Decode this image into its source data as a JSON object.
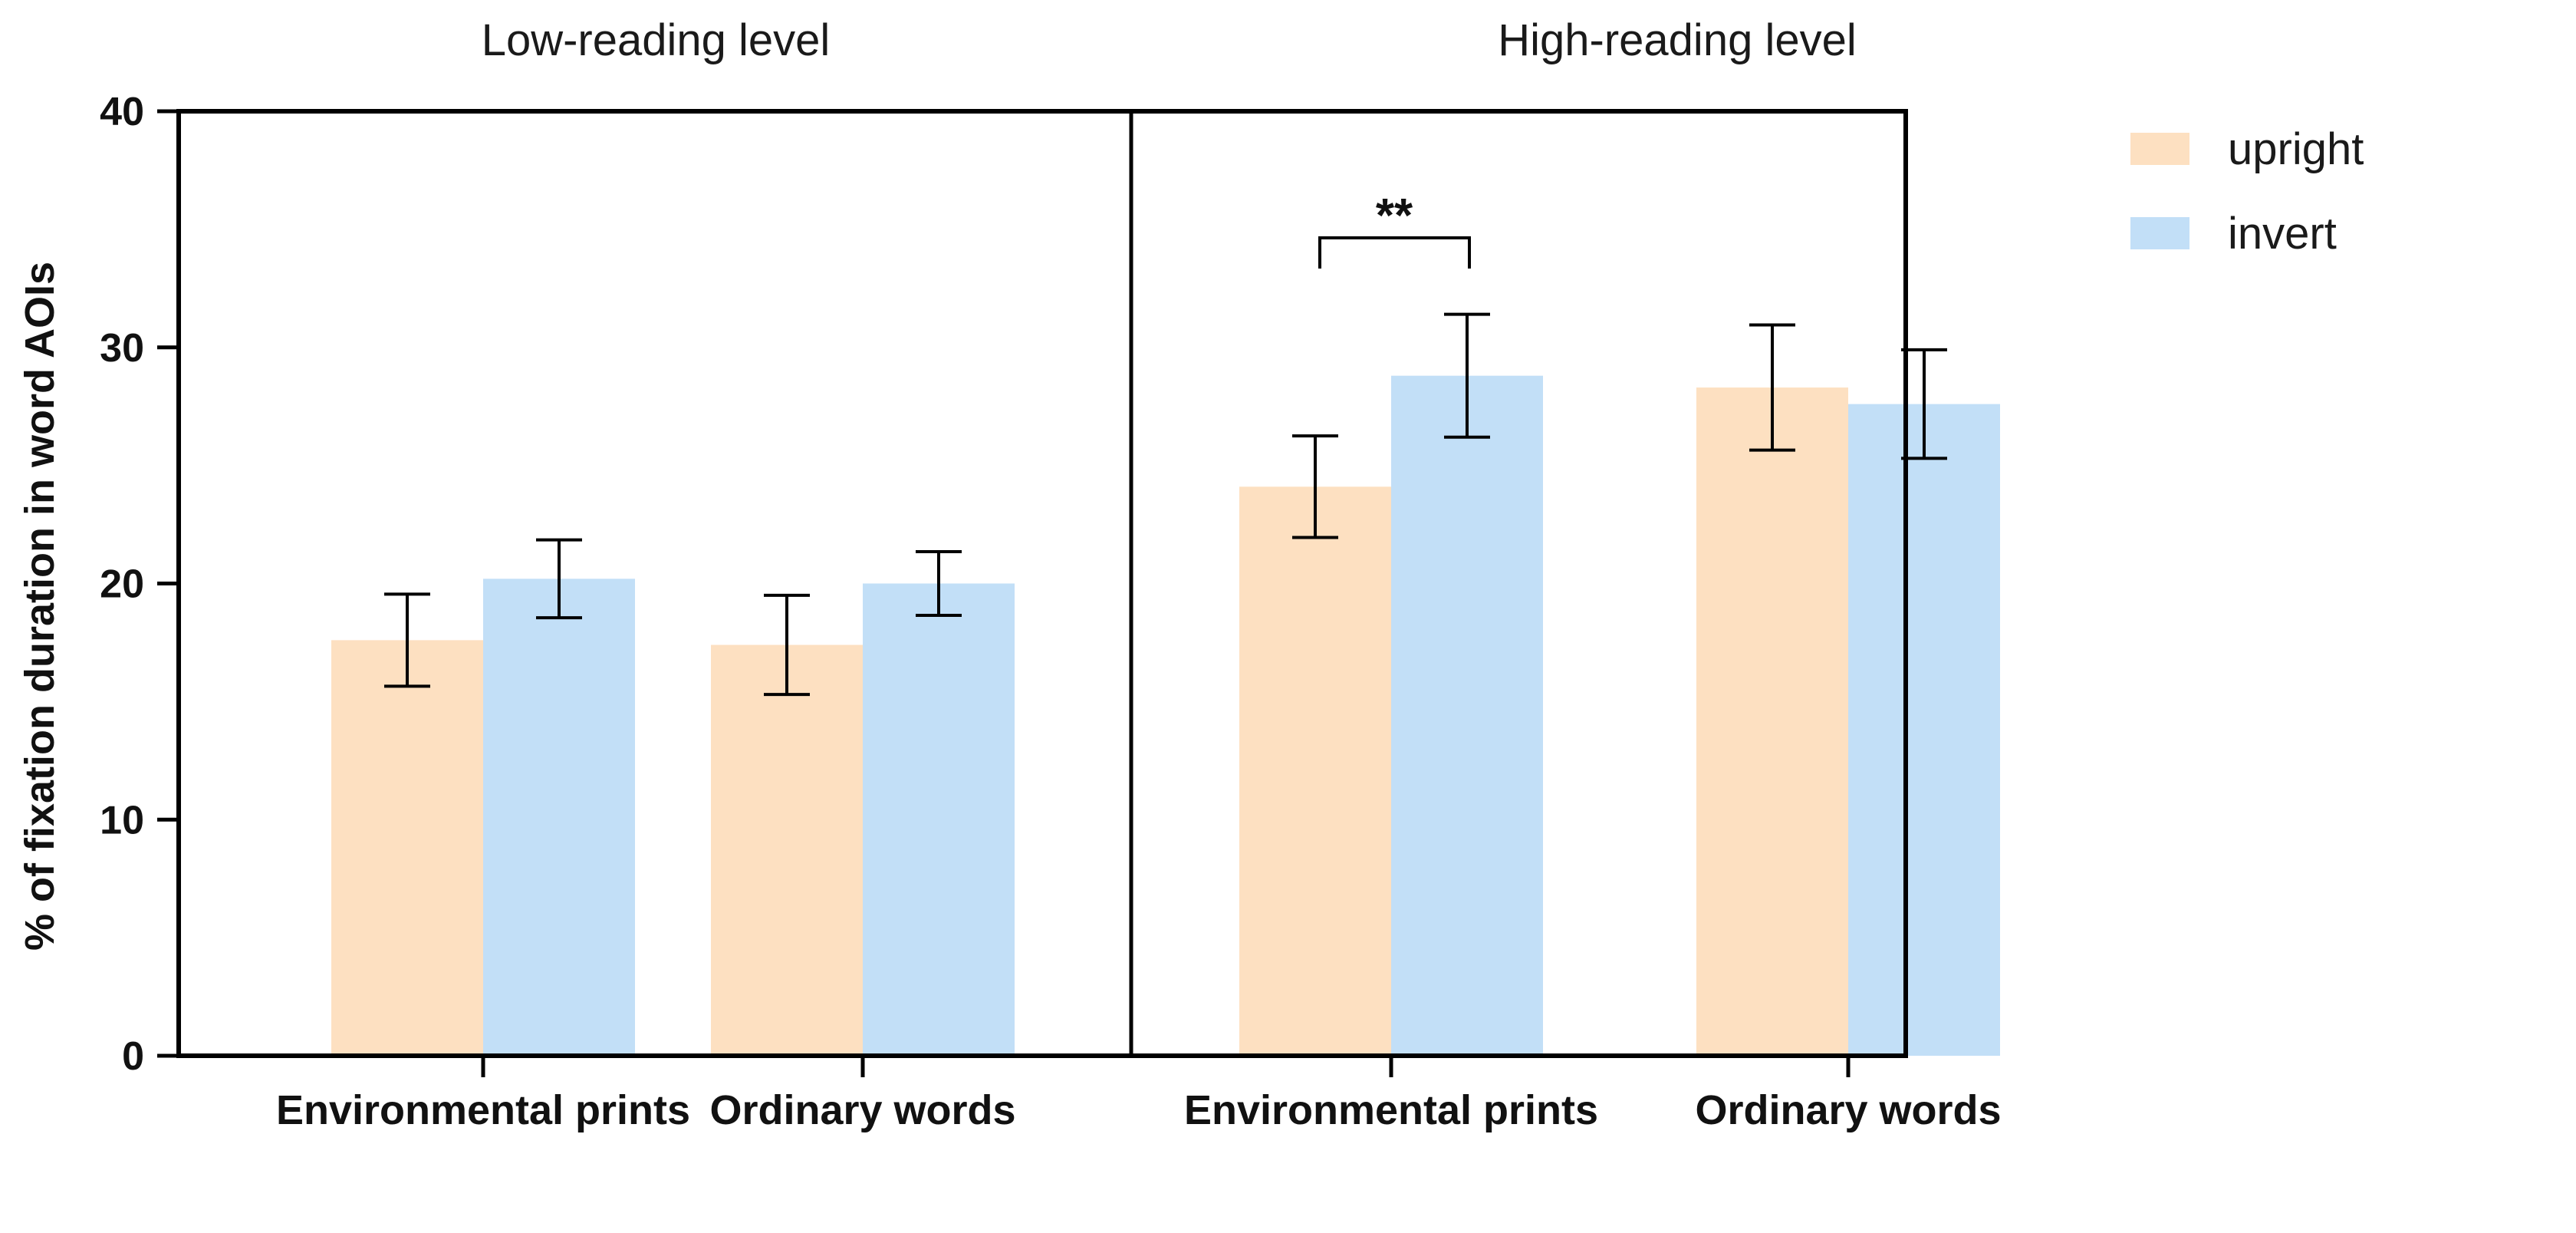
{
  "chart_data": {
    "type": "bar",
    "ylabel": "% of fixation duration in word AOIs",
    "ylim": [
      0,
      40
    ],
    "yticks": [
      "0",
      "10",
      "20",
      "30",
      "40"
    ],
    "series_names": [
      "upright",
      "invert"
    ],
    "colors": {
      "upright": "#fde0c1",
      "invert": "#c2dff7"
    },
    "panels": [
      {
        "title": "Low-reading level",
        "categories": [
          "Environmental prints",
          "Ordinary words"
        ],
        "series": [
          {
            "name": "upright",
            "values": [
              17.6,
              17.4
            ],
            "errors": [
              1.95,
              2.1
            ]
          },
          {
            "name": "invert",
            "values": [
              20.2,
              20.0
            ],
            "errors": [
              1.65,
              1.35
            ]
          }
        ]
      },
      {
        "title": "High-reading level",
        "categories": [
          "Environmental prints",
          "Ordinary words"
        ],
        "series": [
          {
            "name": "upright",
            "values": [
              24.1,
              28.3
            ],
            "errors": [
              2.15,
              2.65
            ]
          },
          {
            "name": "invert",
            "values": [
              28.8,
              27.6
            ],
            "errors": [
              2.6,
              2.3
            ]
          }
        ]
      }
    ],
    "annotations": [
      {
        "panel": 1,
        "category": 0,
        "text": "**"
      }
    ],
    "legend": {
      "position": "top-right",
      "labels": [
        "upright",
        "invert"
      ]
    }
  }
}
